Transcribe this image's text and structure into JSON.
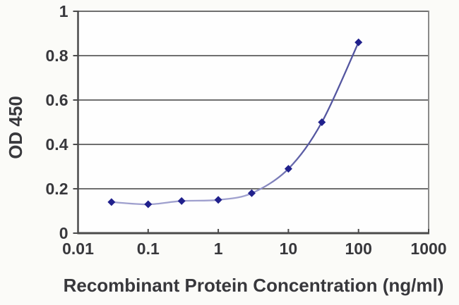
{
  "chart_data": {
    "type": "line",
    "title": "",
    "xlabel": "Recombinant Protein Concentration (ng/ml)",
    "ylabel": "OD 450",
    "x_scale": "log",
    "y_scale": "linear",
    "xlim": [
      0.01,
      1000
    ],
    "ylim": [
      0,
      1
    ],
    "x": [
      0.03,
      0.1,
      0.3,
      1,
      3,
      10,
      30,
      100
    ],
    "y": [
      0.14,
      0.13,
      0.145,
      0.15,
      0.18,
      0.29,
      0.5,
      0.86
    ],
    "x_ticks": [
      0.01,
      0.1,
      1,
      10,
      100,
      1000
    ],
    "x_tick_labels": [
      "0.01",
      "0.1",
      "1",
      "10",
      "100",
      "1000"
    ],
    "y_ticks": [
      0,
      0.2,
      0.4,
      0.6,
      0.8,
      1
    ],
    "y_tick_labels": [
      "0",
      "0.2",
      "0.4",
      "0.6",
      "0.8",
      "1"
    ],
    "grid": "horizontal",
    "legend": "none",
    "marker": "diamond",
    "line_style": "smooth",
    "colors": {
      "line_flat": "#9fa0ce",
      "line_steep": "#5456a0",
      "marker": "#20208c",
      "grid": "#6f6f6f",
      "axis": "#4a4a4a",
      "frame": "#8a8a8a",
      "text": "#38383c",
      "plot_background": "#fefefe",
      "page_background": "#fbfbf8"
    }
  }
}
